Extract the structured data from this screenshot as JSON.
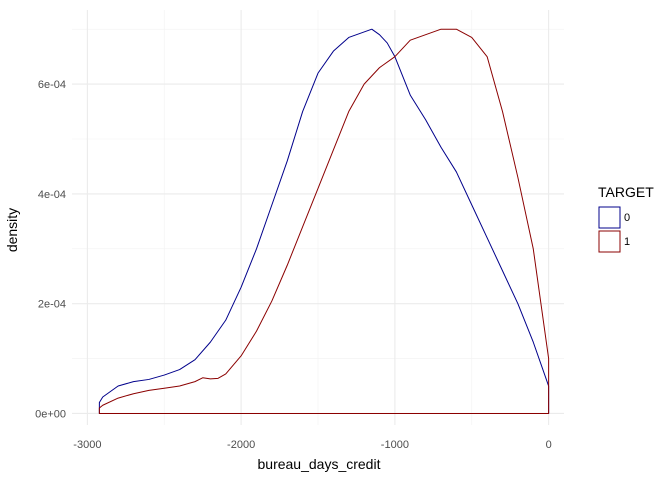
{
  "chart_data": {
    "type": "area",
    "xlabel": "bureau_days_credit",
    "ylabel": "density",
    "xlim": [
      -3000,
      0
    ],
    "ylim": [
      0,
      0.0007
    ],
    "x_ticks": [
      -3000,
      -2000,
      -1000,
      0
    ],
    "x_tick_labels": [
      "-3000",
      "-2000",
      "-1000",
      "0"
    ],
    "y_ticks": [
      0,
      0.0002,
      0.0004,
      0.0006
    ],
    "y_tick_labels": [
      "0e+00",
      "2e-04",
      "4e-04",
      "6e-04"
    ],
    "grid": true,
    "legend": {
      "title": "TARGET",
      "position": "right"
    },
    "series": [
      {
        "name": "0",
        "color": "#00008b",
        "x": [
          -2922,
          -2900,
          -2800,
          -2700,
          -2600,
          -2500,
          -2400,
          -2300,
          -2200,
          -2100,
          -2000,
          -1900,
          -1800,
          -1700,
          -1600,
          -1500,
          -1400,
          -1300,
          -1200,
          -1150,
          -1100,
          -1050,
          -1000,
          -900,
          -800,
          -700,
          -600,
          -500,
          -400,
          -300,
          -200,
          -100,
          -50,
          0
        ],
        "values": [
          2e-05,
          3e-05,
          5e-05,
          5.8e-05,
          6.2e-05,
          7e-05,
          8e-05,
          9.8e-05,
          0.00013,
          0.00017,
          0.00023,
          0.0003,
          0.00038,
          0.00046,
          0.00055,
          0.00062,
          0.00066,
          0.000685,
          0.000695,
          0.0007,
          0.00069,
          0.000675,
          0.00065,
          0.00058,
          0.000535,
          0.000485,
          0.00044,
          0.00038,
          0.00032,
          0.00026,
          0.0002,
          0.00013,
          9e-05,
          5e-05
        ]
      },
      {
        "name": "1",
        "color": "#8b0000",
        "x": [
          -2922,
          -2900,
          -2800,
          -2700,
          -2600,
          -2500,
          -2400,
          -2300,
          -2250,
          -2200,
          -2150,
          -2100,
          -2000,
          -1900,
          -1800,
          -1700,
          -1600,
          -1500,
          -1400,
          -1300,
          -1200,
          -1100,
          -1000,
          -900,
          -800,
          -700,
          -650,
          -600,
          -500,
          -400,
          -300,
          -200,
          -100,
          -50,
          0
        ],
        "values": [
          1e-05,
          1.5e-05,
          2.8e-05,
          3.6e-05,
          4.2e-05,
          4.6e-05,
          5e-05,
          5.8e-05,
          6.5e-05,
          6.3e-05,
          6.4e-05,
          7.2e-05,
          0.000105,
          0.00015,
          0.000205,
          0.00027,
          0.00034,
          0.00041,
          0.00048,
          0.00055,
          0.0006,
          0.00063,
          0.00065,
          0.00068,
          0.00069,
          0.0007,
          0.0007,
          0.0007,
          0.000685,
          0.00065,
          0.00055,
          0.00043,
          0.0003,
          0.0002,
          0.0001
        ]
      }
    ]
  }
}
